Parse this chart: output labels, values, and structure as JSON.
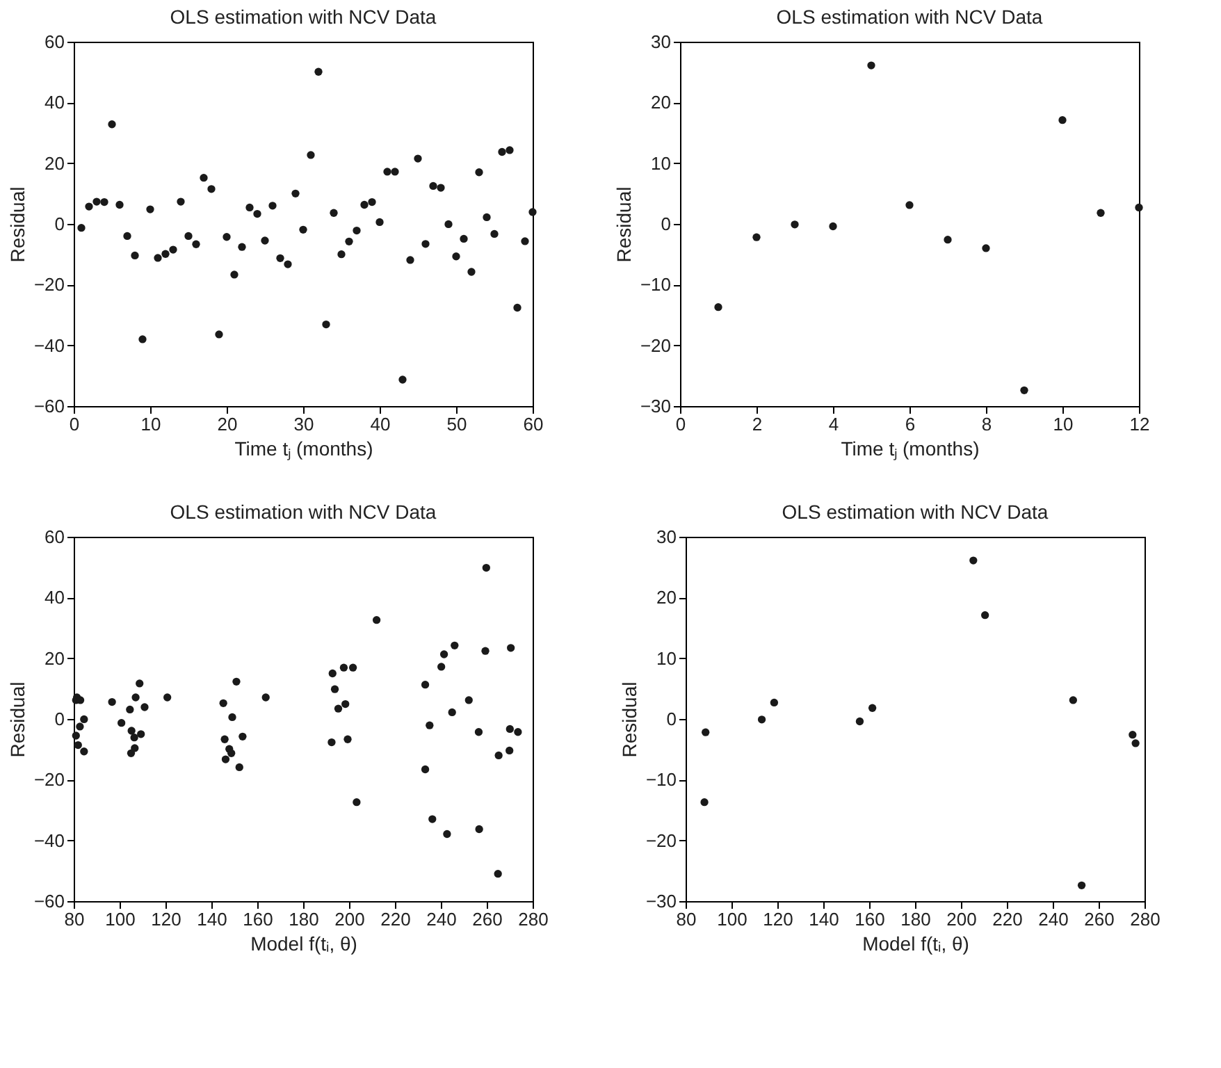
{
  "chart_data": [
    {
      "type": "scatter",
      "title": "OLS estimation with NCV Data",
      "xlabel": "Time tⱼ (months)",
      "ylabel": "Residual",
      "marker": "circle",
      "grid": false,
      "xlim": [
        0,
        60
      ],
      "xticks": [
        0,
        10,
        20,
        30,
        40,
        50,
        60
      ],
      "ylim": [
        -60,
        60
      ],
      "yticks": [
        -60,
        -40,
        -20,
        0,
        20,
        40,
        60
      ],
      "series": [
        {
          "color": "#1a1a1a",
          "x": [
            1,
            2,
            3,
            4,
            5,
            6,
            7,
            8,
            9,
            10,
            11,
            12,
            13,
            14,
            15,
            16,
            17,
            18,
            19,
            20,
            21,
            22,
            23,
            24,
            25,
            26,
            27,
            28,
            29,
            30,
            31,
            32,
            33,
            34,
            35,
            36,
            37,
            38,
            39,
            40,
            41,
            42,
            43,
            44,
            45,
            46,
            47,
            48,
            49,
            50,
            51,
            52,
            53,
            54,
            55,
            56,
            57,
            58,
            59,
            60
          ],
          "values": [
            -1.3,
            5.7,
            7.3,
            7.2,
            32.8,
            6.3,
            -4.0,
            -10.4,
            -38,
            4.8,
            -11.2,
            -9.9,
            -8.5,
            7.3,
            -4.0,
            -6.7,
            15.2,
            11.5,
            -36.4,
            -4.3,
            -16.7,
            -7.6,
            5.4,
            3.3,
            -5.5,
            6.0,
            -11.3,
            -13.3,
            10.0,
            -1.9,
            22.7,
            50.1,
            -33.1,
            3.6,
            -10.0,
            -5.8,
            -2.2,
            6.3,
            7.2,
            0.6,
            17.2,
            17.2,
            -51.3,
            -11.9,
            21.5,
            -6.6,
            12.5,
            11.9,
            -0.1,
            -10.7,
            -4.9,
            -15.8,
            17.0,
            2.2,
            -3.3,
            23.7,
            24.3,
            -27.6,
            -5.7,
            3.9
          ]
        }
      ]
    },
    {
      "type": "scatter",
      "title": "OLS estimation with NCV Data",
      "xlabel": "Time tⱼ (months)",
      "ylabel": "Residual",
      "marker": "circle",
      "grid": false,
      "xlim": [
        0,
        12
      ],
      "xticks": [
        0,
        2,
        4,
        6,
        8,
        10,
        12
      ],
      "ylim": [
        -30,
        30
      ],
      "yticks": [
        -30,
        -20,
        -10,
        0,
        10,
        20,
        30
      ],
      "series": [
        {
          "color": "#1a1a1a",
          "x": [
            1,
            2,
            3,
            4,
            5,
            6,
            7,
            8,
            9,
            10,
            11,
            12
          ],
          "values": [
            -13.7,
            -2.2,
            -0.1,
            -0.4,
            26.1,
            3.1,
            -2.6,
            -4.0,
            -27.4,
            17.1,
            1.8,
            2.7
          ]
        }
      ]
    },
    {
      "type": "scatter",
      "title": "OLS estimation with NCV Data",
      "xlabel": "Model f(tᵢ, θ)",
      "ylabel": "Residual",
      "marker": "circle",
      "grid": false,
      "xlim": [
        80,
        280
      ],
      "xticks": [
        80,
        100,
        120,
        140,
        160,
        180,
        200,
        220,
        240,
        260,
        280
      ],
      "ylim": [
        -60,
        60
      ],
      "yticks": [
        -60,
        -40,
        -20,
        0,
        20,
        40,
        60
      ],
      "series": [
        {
          "color": "#1a1a1a",
          "x": [
            81.4,
            81.0,
            82.9,
            81.0,
            81.9,
            82.7,
            84.5,
            84.5,
            96.7,
            100.8,
            104.5,
            105.2,
            107.0,
            108.7,
            110.9,
            109.3,
            106.4,
            106.6,
            105.0,
            120.8,
            145.2,
            145.8,
            146.2,
            147.8,
            148.7,
            149.1,
            150.9,
            152.2,
            153.6,
            163.7,
            192.8,
            193.8,
            192.4,
            195.3,
            197.7,
            198.4,
            199.4,
            201.7,
            203.3,
            212.0,
            233.2,
            233.2,
            235.1,
            236.3,
            240.2,
            241.4,
            242.7,
            244.9,
            246.0,
            252.2,
            256.5,
            256.7,
            259.4,
            259.8,
            264.9,
            265.2,
            269.9,
            270.1,
            270.5,
            273.6
          ],
          "values": [
            7.1,
            6.2,
            6.2,
            -5.5,
            -8.6,
            -2.5,
            -0.1,
            -10.7,
            5.6,
            -1.3,
            3.1,
            -3.9,
            7.1,
            11.7,
            3.9,
            -5.0,
            -6.1,
            -9.6,
            -11.3,
            7.1,
            5.2,
            -6.7,
            -13.3,
            -9.9,
            -11.3,
            0.6,
            12.3,
            -15.9,
            -5.8,
            7.1,
            15.0,
            9.8,
            -7.7,
            3.4,
            16.9,
            4.9,
            -6.7,
            16.9,
            -27.4,
            32.6,
            11.3,
            -16.6,
            -2.1,
            -33.0,
            17.2,
            21.3,
            -37.9,
            2.2,
            24.2,
            6.2,
            -4.3,
            -36.3,
            22.4,
            49.8,
            -51.0,
            -12.0,
            -10.4,
            -3.3,
            23.4,
            -4.3
          ]
        }
      ]
    },
    {
      "type": "scatter",
      "title": "OLS estimation with NCV Data",
      "xlabel": "Model f(tᵢ, θ)",
      "ylabel": "Residual",
      "marker": "circle",
      "grid": false,
      "xlim": [
        80,
        280
      ],
      "xticks": [
        80,
        100,
        120,
        140,
        160,
        180,
        200,
        220,
        240,
        260,
        280
      ],
      "ylim": [
        -30,
        30
      ],
      "yticks": [
        -30,
        -20,
        -10,
        0,
        10,
        20,
        30
      ],
      "series": [
        {
          "color": "#1a1a1a",
          "x": [
            88.2,
            88.7,
            113.2,
            118.6,
            155.9,
            161.4,
            205.4,
            210.5,
            248.9,
            252.6,
            274.8,
            276.1
          ],
          "values": [
            -13.7,
            -2.2,
            -0.1,
            2.7,
            -0.4,
            1.8,
            26.1,
            17.1,
            3.1,
            -27.4,
            -2.6,
            -4.0
          ]
        }
      ]
    }
  ]
}
